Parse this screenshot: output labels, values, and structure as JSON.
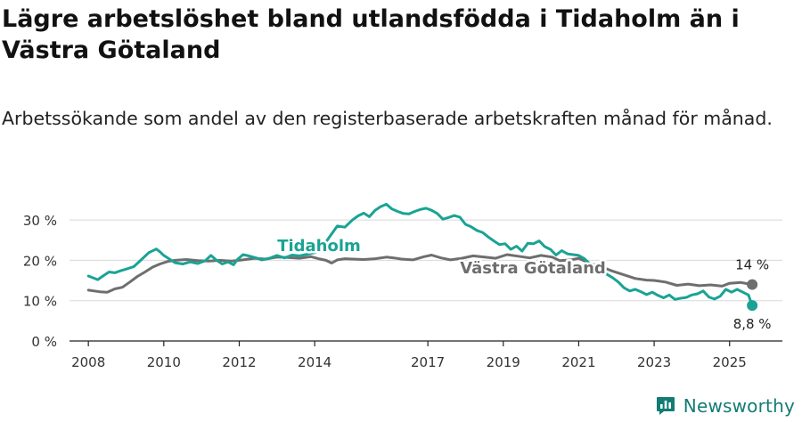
{
  "header": {
    "title": "Lägre arbetslöshet bland utlandsfödda i Tidaholm än i Västra Götaland",
    "subtitle": "Arbetssökande som andel av den registerbaserade arbetskraften månad för månad."
  },
  "footer": {
    "brand": "Newsworthy"
  },
  "colors": {
    "tidaholm": "#1aa394",
    "vastra_gotaland": "#6e6e6e",
    "grid": "#d9d9d9",
    "brand": "#127c75"
  },
  "chart_data": {
    "type": "line",
    "title": "Lägre arbetslöshet bland utlandsfödda i Tidaholm än i Västra Götaland",
    "subtitle": "Arbetssökande som andel av den registerbaserade arbetskraften månad för månad.",
    "xlabel": "",
    "ylabel": "",
    "xlim": [
      2007.5,
      2026.4
    ],
    "ylim": [
      0,
      32
    ],
    "y_ticks": [
      0,
      10,
      20,
      30
    ],
    "y_tick_labels": [
      "0 %",
      "10 %",
      "20 %",
      "30 %"
    ],
    "x_ticks": [
      2008,
      2010,
      2012,
      2014,
      2017,
      2019,
      2021,
      2023,
      2025
    ],
    "x_tick_labels": [
      "2008",
      "2010",
      "2012",
      "2014",
      "2017",
      "2019",
      "2021",
      "2023",
      "2025"
    ],
    "grid": true,
    "legend": "inline labels",
    "series": [
      {
        "name": "Tidaholm",
        "end_label": "8,8 %",
        "x": [
          2008.0,
          2008.25,
          2008.4,
          2008.55,
          2008.7,
          2008.85,
          2009.0,
          2009.2,
          2009.4,
          2009.6,
          2009.8,
          2009.9,
          2010.0,
          2010.15,
          2010.3,
          2010.5,
          2010.7,
          2010.9,
          2011.1,
          2011.25,
          2011.4,
          2011.55,
          2011.7,
          2011.85,
          2011.95,
          2012.1,
          2012.25,
          2012.45,
          2012.6,
          2012.8,
          2013.0,
          2013.2,
          2013.4,
          2013.6,
          2013.8,
          2014.0,
          2014.2,
          2014.4,
          2014.6,
          2014.8,
          2015.0,
          2015.15,
          2015.3,
          2015.45,
          2015.6,
          2015.75,
          2015.9,
          2016.05,
          2016.2,
          2016.35,
          2016.5,
          2016.65,
          2016.8,
          2016.95,
          2017.1,
          2017.25,
          2017.4,
          2017.55,
          2017.7,
          2017.85,
          2018.0,
          2018.15,
          2018.3,
          2018.45,
          2018.6,
          2018.75,
          2018.9,
          2019.05,
          2019.2,
          2019.35,
          2019.5,
          2019.65,
          2019.8,
          2019.95,
          2020.1,
          2020.25,
          2020.4,
          2020.55,
          2020.7,
          2020.85,
          2021.0,
          2021.15,
          2021.3,
          2021.45,
          2021.6,
          2021.75,
          2021.9,
          2022.05,
          2022.2,
          2022.35,
          2022.5,
          2022.65,
          2022.8,
          2022.95,
          2023.1,
          2023.25,
          2023.4,
          2023.55,
          2023.7,
          2023.85,
          2024.0,
          2024.15,
          2024.3,
          2024.45,
          2024.6,
          2024.75,
          2024.9,
          2025.05,
          2025.2,
          2025.35,
          2025.5,
          2025.6
        ],
        "values": [
          16.1,
          15.2,
          16.2,
          17.1,
          16.9,
          17.4,
          17.8,
          18.4,
          20.1,
          21.9,
          22.8,
          22.1,
          21.2,
          20.3,
          19.4,
          19.1,
          19.6,
          19.2,
          19.9,
          21.2,
          20.0,
          19.1,
          19.6,
          18.9,
          20.2,
          21.4,
          21.1,
          20.6,
          20.1,
          20.5,
          21.2,
          20.6,
          21.3,
          21.1,
          21.5,
          21.9,
          23.2,
          25.9,
          28.5,
          28.2,
          30.0,
          31.0,
          31.7,
          30.8,
          32.4,
          33.3,
          33.9,
          32.7,
          32.1,
          31.6,
          31.5,
          32.1,
          32.6,
          32.9,
          32.4,
          31.6,
          30.2,
          30.6,
          31.1,
          30.7,
          28.9,
          28.3,
          27.4,
          26.9,
          25.8,
          24.8,
          23.9,
          24.1,
          22.7,
          23.5,
          22.3,
          24.2,
          24.1,
          24.8,
          23.4,
          22.7,
          21.3,
          22.4,
          21.6,
          21.4,
          21.2,
          20.4,
          19.1,
          18.2,
          17.4,
          16.5,
          15.7,
          14.6,
          13.2,
          12.4,
          12.8,
          12.2,
          11.5,
          12.1,
          11.3,
          10.7,
          11.4,
          10.3,
          10.6,
          10.8,
          11.4,
          11.7,
          12.4,
          10.9,
          10.4,
          11.1,
          12.8,
          12.1,
          12.8,
          12.1,
          11.4,
          8.8
        ]
      },
      {
        "name": "Västra Götaland",
        "end_label": "14 %",
        "x": [
          2008.0,
          2008.3,
          2008.5,
          2008.7,
          2008.9,
          2009.1,
          2009.3,
          2009.5,
          2009.7,
          2009.9,
          2010.1,
          2010.3,
          2010.6,
          2010.9,
          2011.2,
          2011.5,
          2011.8,
          2012.1,
          2012.4,
          2012.7,
          2013.0,
          2013.3,
          2013.6,
          2013.9,
          2014.1,
          2014.3,
          2014.45,
          2014.6,
          2014.8,
          2015.0,
          2015.3,
          2015.6,
          2015.9,
          2016.1,
          2016.3,
          2016.6,
          2016.9,
          2017.1,
          2017.35,
          2017.6,
          2017.9,
          2018.2,
          2018.5,
          2018.8,
          2019.1,
          2019.4,
          2019.7,
          2020.0,
          2020.3,
          2020.5,
          2020.8,
          2021.0,
          2021.3,
          2021.6,
          2021.9,
          2022.2,
          2022.5,
          2022.8,
          2023.0,
          2023.3,
          2023.6,
          2023.9,
          2024.2,
          2024.5,
          2024.8,
          2025.0,
          2025.3,
          2025.6
        ],
        "values": [
          12.6,
          12.2,
          12.1,
          12.9,
          13.3,
          14.6,
          16.0,
          17.1,
          18.3,
          19.1,
          19.7,
          20.0,
          20.2,
          19.9,
          19.8,
          20.0,
          19.8,
          20.1,
          20.5,
          20.3,
          20.8,
          20.7,
          20.5,
          20.9,
          20.4,
          20.0,
          19.3,
          20.1,
          20.4,
          20.3,
          20.2,
          20.4,
          20.8,
          20.6,
          20.3,
          20.1,
          20.9,
          21.3,
          20.6,
          20.1,
          20.5,
          21.1,
          20.8,
          20.5,
          21.4,
          21.0,
          20.6,
          21.2,
          20.8,
          19.9,
          20.1,
          20.5,
          19.2,
          18.4,
          17.3,
          16.4,
          15.5,
          15.1,
          15.0,
          14.6,
          13.8,
          14.1,
          13.7,
          13.9,
          13.6,
          14.3,
          14.5,
          14.0
        ]
      }
    ]
  }
}
